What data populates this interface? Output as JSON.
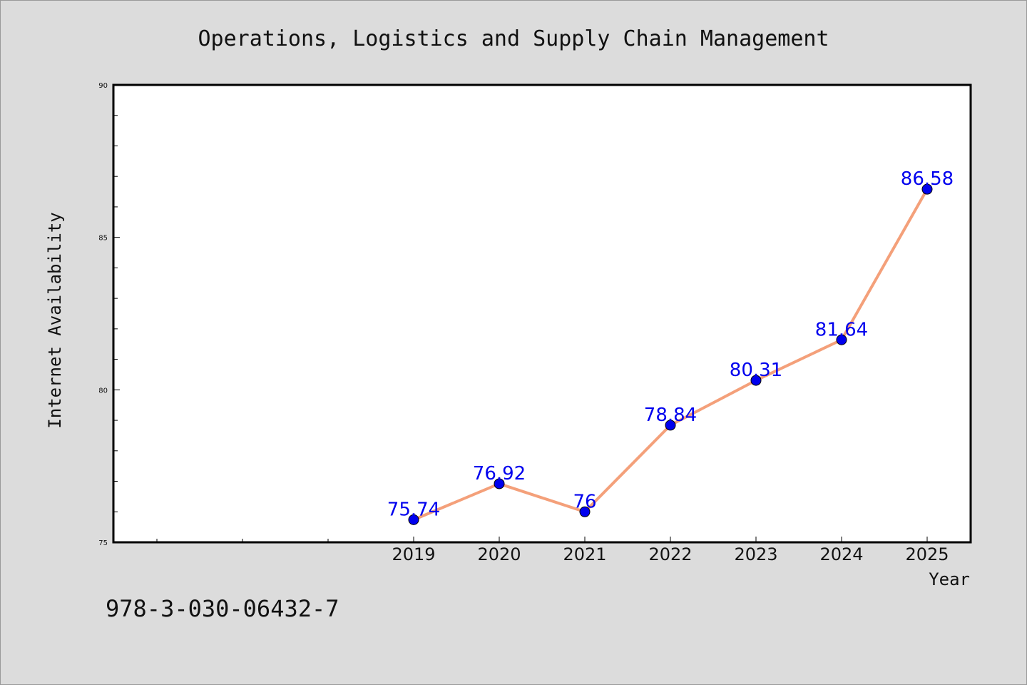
{
  "chart_data": {
    "type": "line",
    "title": "Operations, Logistics and Supply Chain Management",
    "xlabel": "Year",
    "ylabel": "Internet Availability",
    "categories": [
      "2019",
      "2020",
      "2021",
      "2022",
      "2023",
      "2024",
      "2025"
    ],
    "series": [
      {
        "values": [
          75.74,
          76.92,
          76.0,
          78.84,
          80.31,
          81.64,
          86.58
        ],
        "labels": [
          "75.74",
          "76.92",
          "76",
          "78.84",
          "80.31",
          "81.64",
          "86.58"
        ],
        "line_color": "#f4a07a",
        "marker_color": "#0000ee"
      }
    ],
    "ylim": [
      75,
      90
    ],
    "yticks": [
      75,
      80,
      85,
      90
    ],
    "grid": false,
    "legend": "none"
  },
  "annotation": "978-3-030-06432-7"
}
